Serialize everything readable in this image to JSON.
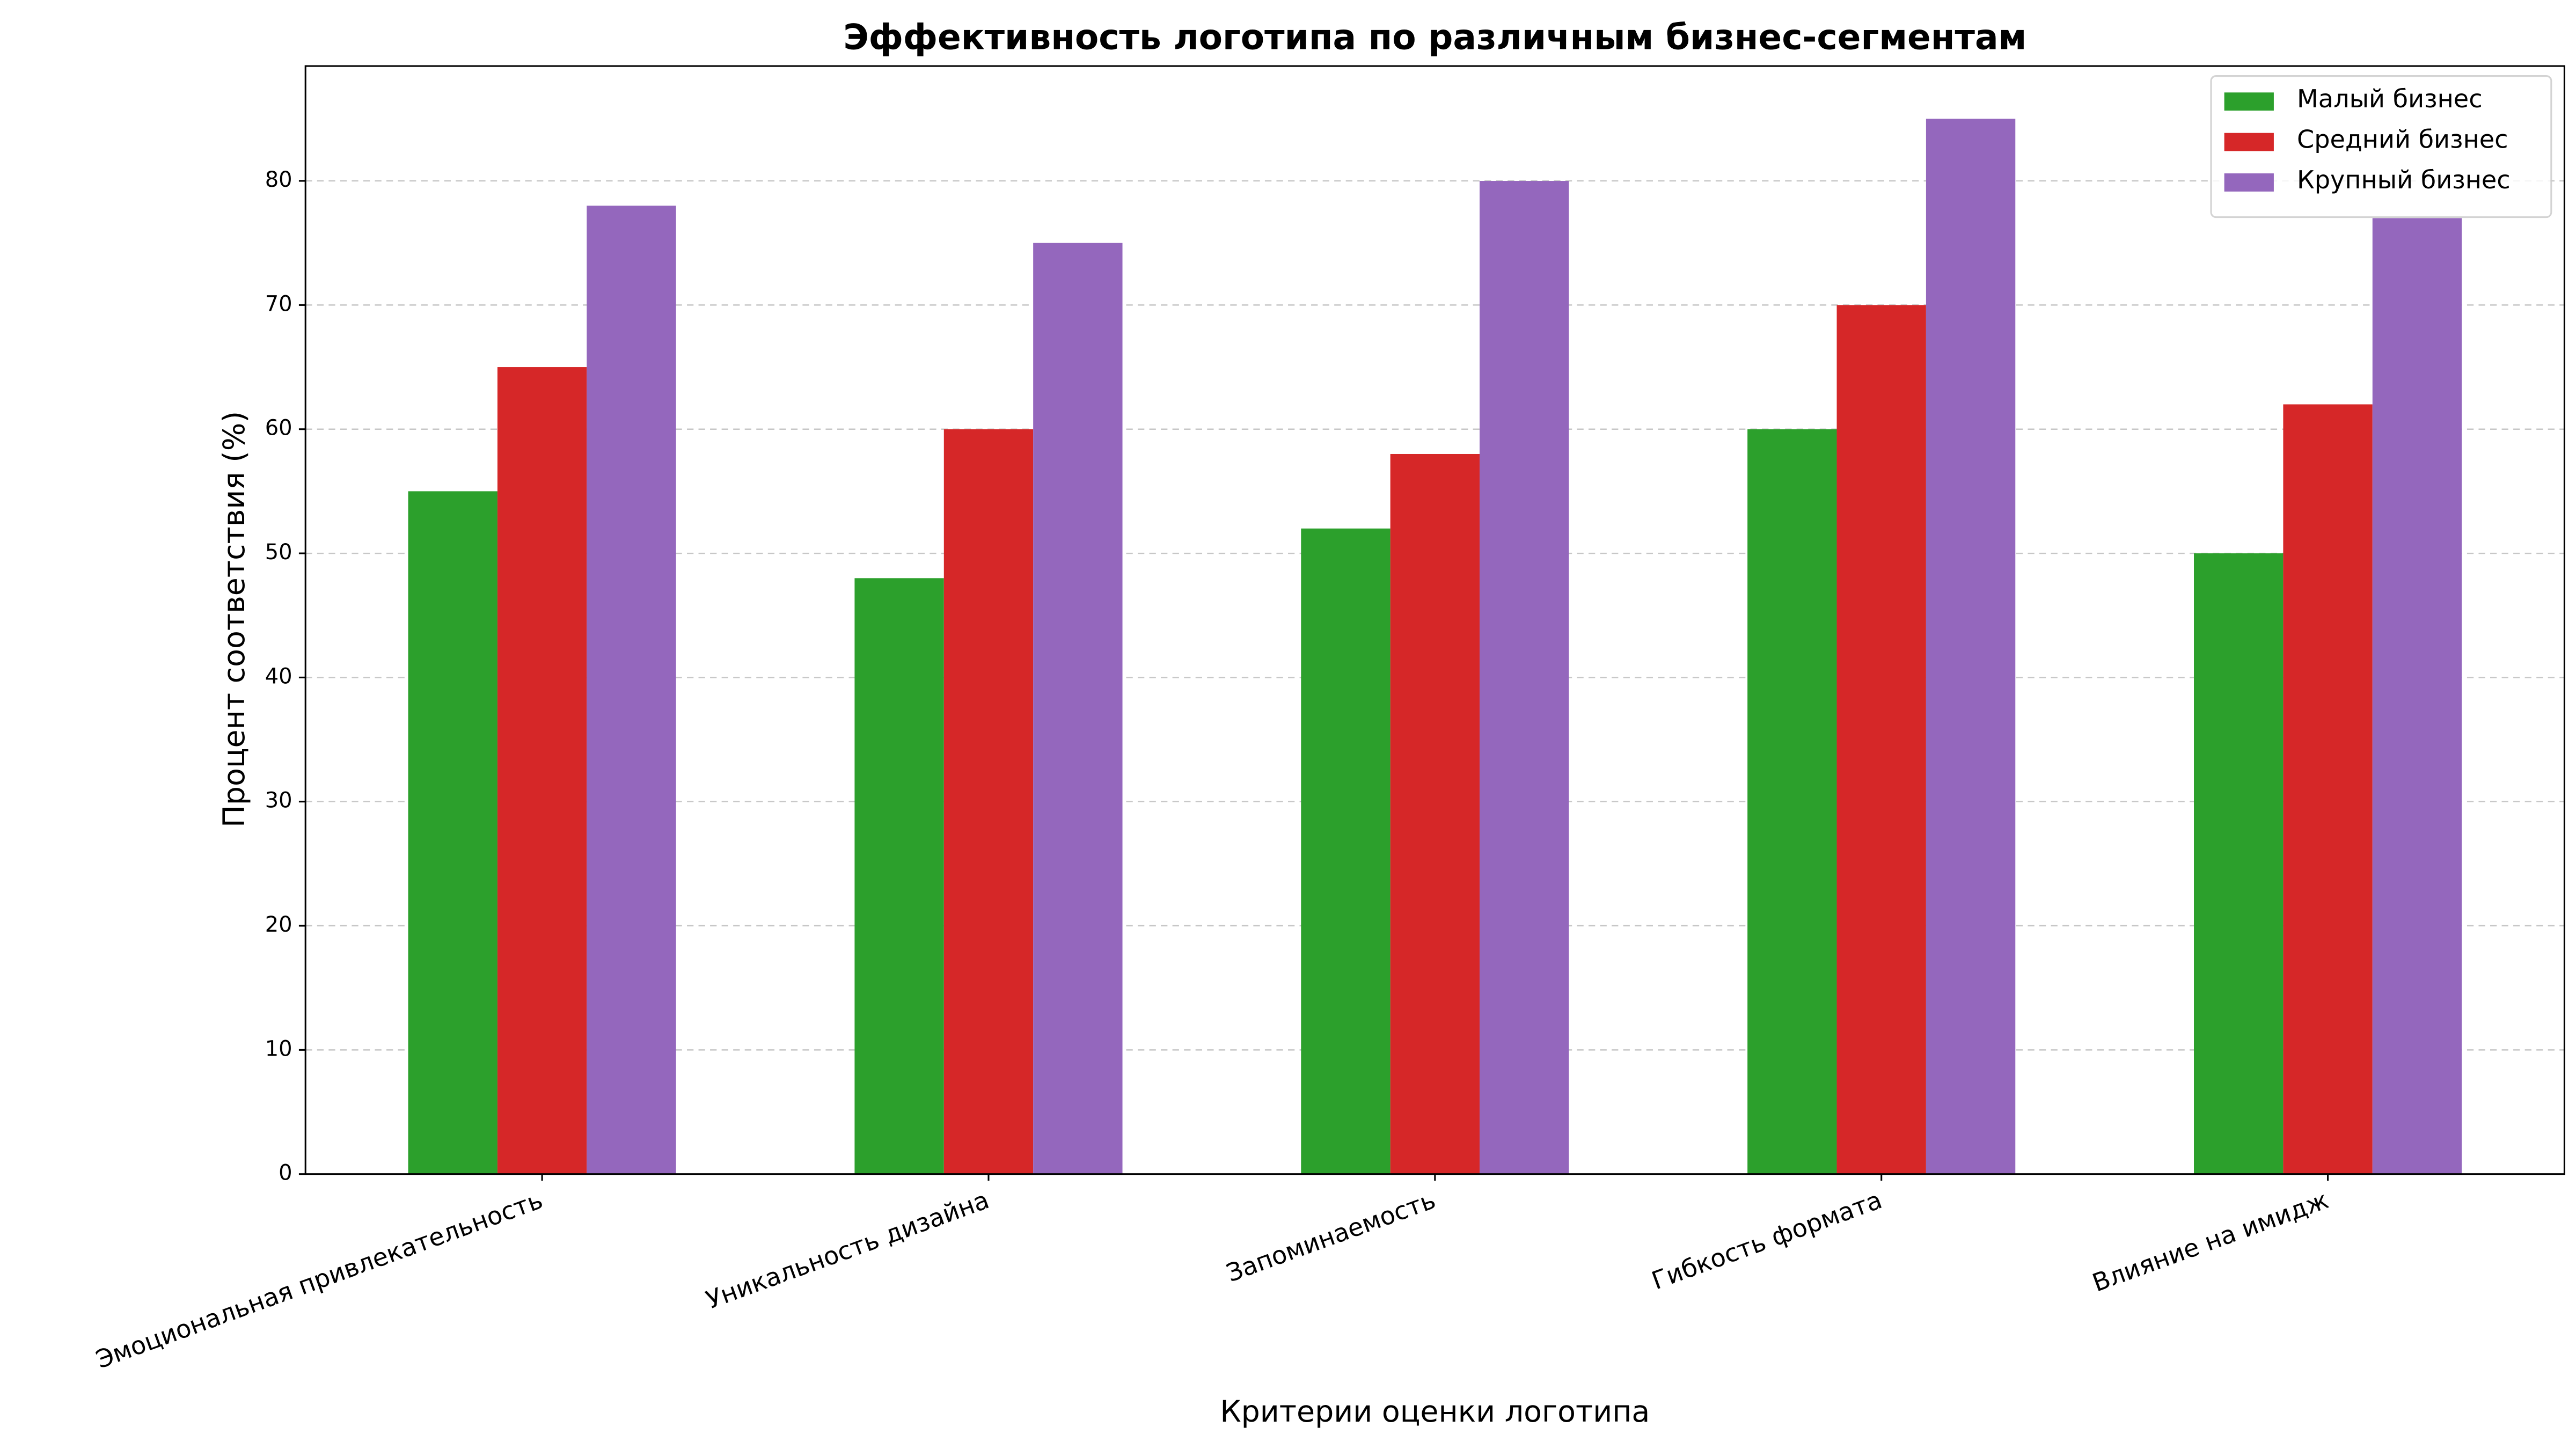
{
  "chart_data": {
    "type": "bar",
    "title": "Эффективность логотипа по различным бизнес-сегментам",
    "x_label": "Критерии оценки логотипа",
    "y_label": "Процент соответствия (%)",
    "categories": [
      "Эмоциональная привлекательность",
      "Уникальность дизайна",
      "Запоминаемость",
      "Гибкость формата",
      "Влияние на имидж"
    ],
    "series": [
      {
        "name": "Малый бизнес",
        "color": "#2ca02c",
        "values": [
          55,
          48,
          52,
          60,
          50
        ]
      },
      {
        "name": "Средний бизнес",
        "color": "#d62728",
        "values": [
          65,
          60,
          58,
          70,
          62
        ]
      },
      {
        "name": "Крупный бизнес",
        "color": "#9467bd",
        "values": [
          78,
          75,
          80,
          85,
          77
        ]
      }
    ],
    "ylim": [
      0,
      89.25
    ],
    "yticks": [
      0,
      10,
      20,
      30,
      40,
      50,
      60,
      70,
      80
    ],
    "grid": true,
    "legend": "upper right"
  }
}
